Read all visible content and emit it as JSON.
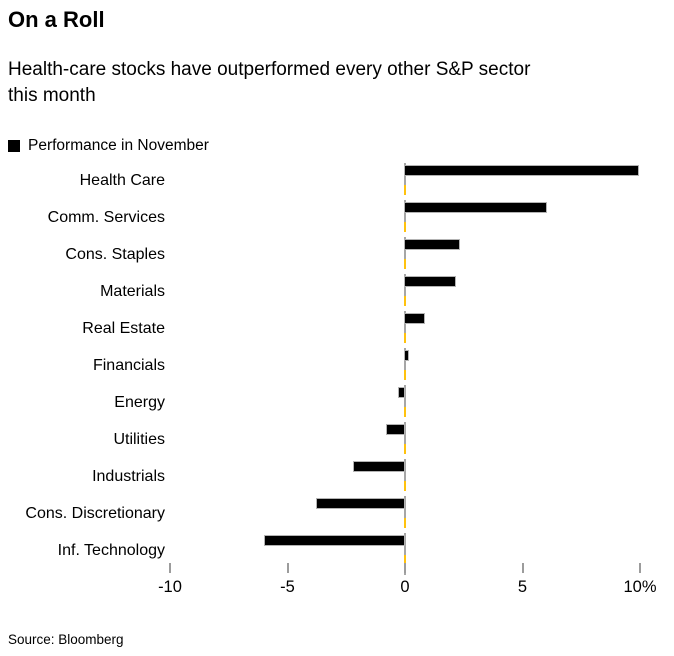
{
  "header": {
    "title": "On a Roll",
    "subtitle": "Health-care stocks have outperformed every other S&P sector this month",
    "subtitle_lines": [
      "Health-care stocks have outperformed every other S&P sector",
      "this month"
    ]
  },
  "legend": {
    "label": "Performance in November",
    "swatch_color": "#000000"
  },
  "chart_data": {
    "type": "bar",
    "orientation": "horizontal",
    "title": "On a Roll",
    "subtitle": "Health-care stocks have outperformed every other S&P sector this month",
    "legend_entry": "Performance in November",
    "legend_position": "top-left",
    "categories": [
      "Health Care",
      "Comm. Services",
      "Cons. Staples",
      "Materials",
      "Real Estate",
      "Financials",
      "Energy",
      "Utilities",
      "Industrials",
      "Cons. Discretionary",
      "Inf. Technology"
    ],
    "values": [
      10.0,
      6.1,
      2.4,
      2.2,
      0.9,
      0.2,
      -0.3,
      -0.8,
      -2.2,
      -3.8,
      -6.0
    ],
    "unit": "%",
    "xlabel": "",
    "ylabel": "",
    "xlim": [
      -11.5,
      11.5
    ],
    "x_ticks": [
      -10,
      -5,
      0,
      5,
      10
    ],
    "x_tick_labels": [
      "-10",
      "-5",
      "0",
      "5",
      "10%"
    ],
    "grid": false,
    "bar_color": "#000000",
    "bar_outline_color": "#b3b3b3",
    "zero_line_dash_colors": [
      "#a6a6a6",
      "#ffc20e"
    ],
    "tick_color": "#9c9c9c"
  },
  "footer": {
    "source": "Source: Bloomberg"
  }
}
